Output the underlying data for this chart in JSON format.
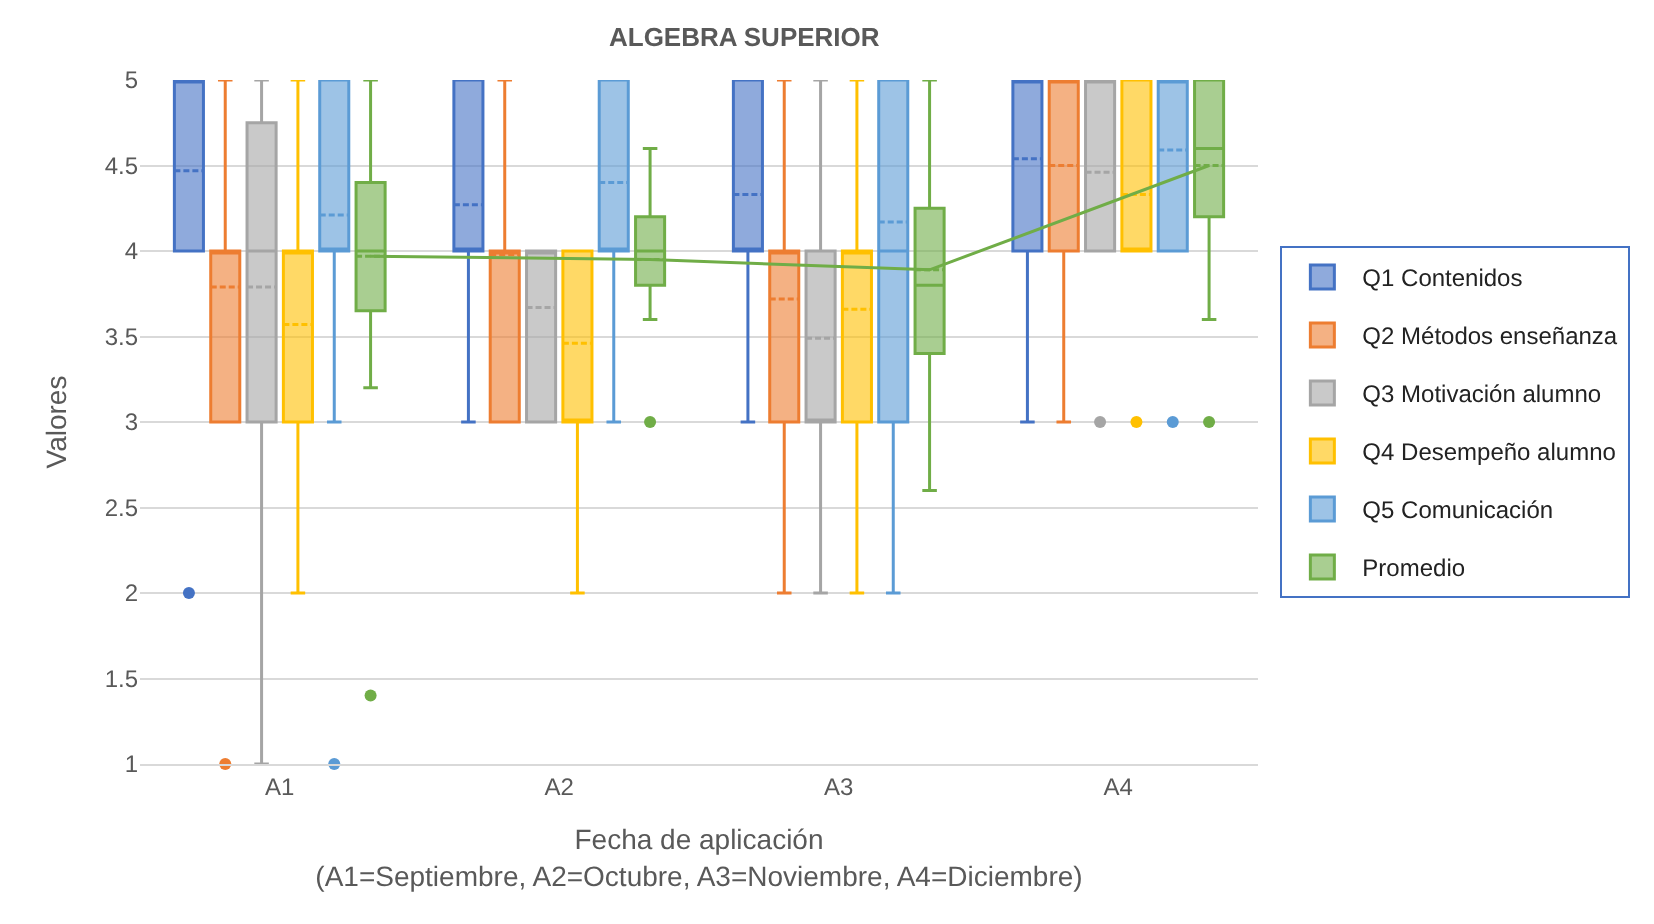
{
  "chart_data": {
    "type": "box",
    "title": "ALGEBRA SUPERIOR",
    "xlabel": "Fecha de aplicación\n(A1=Septiembre, A2=Octubre, A3=Noviembre, A4=Diciembre)",
    "ylabel": "Valores",
    "categories": [
      "A1",
      "A2",
      "A3",
      "A4"
    ],
    "ylim": [
      1,
      5
    ],
    "yticks": [
      1,
      1.5,
      2,
      2.5,
      3,
      3.5,
      4,
      4.5,
      5
    ],
    "grid": "y",
    "legend": "right",
    "series": [
      {
        "name": "Q1 Contenidos",
        "color": "#4472c4",
        "boxes": [
          {
            "low": 4,
            "q1": 4,
            "median": 5,
            "q3": 5,
            "high": 5,
            "mean": 4.47,
            "outliers": [
              2
            ]
          },
          {
            "low": 3,
            "q1": 4,
            "median": 4,
            "q3": 5,
            "high": 5,
            "mean": 4.27
          },
          {
            "low": 3,
            "q1": 4,
            "median": 4,
            "q3": 5,
            "high": 5,
            "mean": 4.33
          },
          {
            "low": 3,
            "q1": 4,
            "median": 5,
            "q3": 5,
            "high": 5,
            "mean": 4.54
          }
        ]
      },
      {
        "name": "Q2 Métodos enseñanza",
        "color": "#ed7d31",
        "boxes": [
          {
            "low": 3,
            "q1": 3,
            "median": 4,
            "q3": 4,
            "high": 5,
            "mean": 3.79,
            "outliers": [
              1
            ]
          },
          {
            "low": 3,
            "q1": 3,
            "median": 4,
            "q3": 4,
            "high": 5,
            "mean": 3.98
          },
          {
            "low": 2,
            "q1": 3,
            "median": 4,
            "q3": 4,
            "high": 5,
            "mean": 3.72
          },
          {
            "low": 3,
            "q1": 4,
            "median": 5,
            "q3": 5,
            "high": 5,
            "mean": 4.5
          }
        ]
      },
      {
        "name": "Q3 Motivación alumno",
        "color": "#a5a5a5",
        "boxes": [
          {
            "low": 1,
            "q1": 3,
            "median": 4,
            "q3": 4.75,
            "high": 5,
            "mean": 3.79
          },
          {
            "low": 3,
            "q1": 3,
            "median": 4,
            "q3": 4,
            "high": 4,
            "mean": 3.67
          },
          {
            "low": 2,
            "q1": 3,
            "median": 3,
            "q3": 4,
            "high": 5,
            "mean": 3.49
          },
          {
            "low": 4,
            "q1": 4,
            "median": 5,
            "q3": 5,
            "high": 5,
            "mean": 4.46,
            "outliers": [
              3
            ]
          }
        ]
      },
      {
        "name": "Q4 Desempeño alumno",
        "color": "#ffc000",
        "boxes": [
          {
            "low": 2,
            "q1": 3,
            "median": 4,
            "q3": 4,
            "high": 5,
            "mean": 3.57
          },
          {
            "low": 2,
            "q1": 3,
            "median": 3,
            "q3": 4,
            "high": 4,
            "mean": 3.46
          },
          {
            "low": 2,
            "q1": 3,
            "median": 4,
            "q3": 4,
            "high": 5,
            "mean": 3.66
          },
          {
            "low": 4,
            "q1": 4,
            "median": 4,
            "q3": 5,
            "high": 5,
            "mean": 4.33,
            "outliers": [
              3
            ]
          }
        ]
      },
      {
        "name": "Q5 Comunicación",
        "color": "#5b9bd5",
        "boxes": [
          {
            "low": 3,
            "q1": 4,
            "median": 4,
            "q3": 5,
            "high": 5,
            "mean": 4.21,
            "outliers": [
              1
            ]
          },
          {
            "low": 3,
            "q1": 4,
            "median": 4,
            "q3": 5,
            "high": 5,
            "mean": 4.4
          },
          {
            "low": 2,
            "q1": 3,
            "median": 4,
            "q3": 5,
            "high": 5,
            "mean": 4.17
          },
          {
            "low": 4,
            "q1": 4,
            "median": 5,
            "q3": 5,
            "high": 5,
            "mean": 4.59,
            "outliers": [
              3
            ]
          }
        ]
      },
      {
        "name": "Promedio",
        "color": "#70ad47",
        "boxes": [
          {
            "low": 3.2,
            "q1": 3.65,
            "median": 4,
            "q3": 4.4,
            "high": 5,
            "mean": 3.97,
            "outliers": [
              1.4
            ]
          },
          {
            "low": 3.6,
            "q1": 3.8,
            "median": 4,
            "q3": 4.2,
            "high": 4.6,
            "mean": 3.95,
            "outliers": [
              3
            ]
          },
          {
            "low": 2.6,
            "q1": 3.4,
            "median": 3.8,
            "q3": 4.25,
            "high": 5,
            "mean": 3.89
          },
          {
            "low": 3.6,
            "q1": 4.2,
            "median": 4.6,
            "q3": 5,
            "high": 5,
            "mean": 4.5,
            "outliers": [
              3
            ]
          }
        ]
      },
      {
        "type": "line",
        "color": "#70ad47",
        "values": [
          3.97,
          3.95,
          3.89,
          4.5
        ]
      }
    ]
  }
}
